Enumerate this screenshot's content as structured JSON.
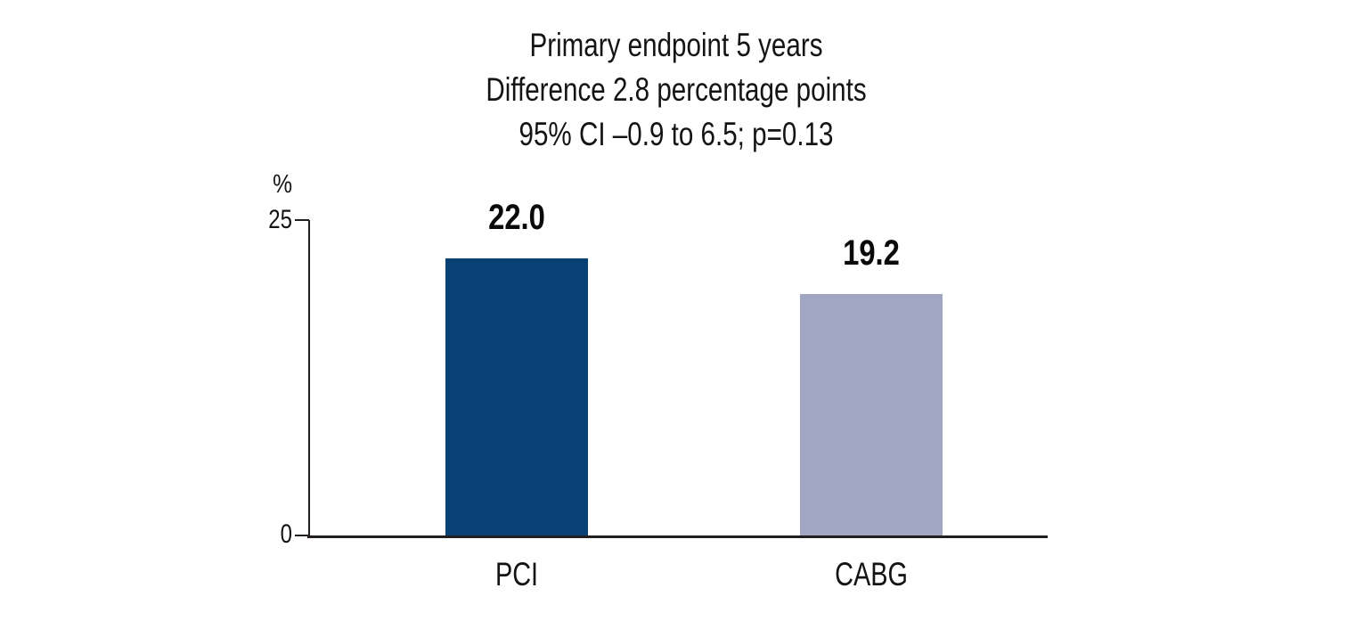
{
  "title": {
    "line1": "Primary endpoint 5 years",
    "line2": "Difference 2.8 percentage points",
    "line3": "95% CI –0.9 to 6.5; p=0.13"
  },
  "y_axis": {
    "unit_label": "%",
    "tick_top": "25",
    "tick_bottom": "0"
  },
  "chart_data": {
    "type": "bar",
    "title": "Primary endpoint 5 years",
    "subtitle_lines": [
      "Difference 2.8 percentage points",
      "95% CI –0.9 to 6.5; p=0.13"
    ],
    "categories": [
      "PCI",
      "CABG"
    ],
    "values": [
      22.0,
      19.2
    ],
    "value_labels": [
      "22.0",
      "19.2"
    ],
    "bar_colors": [
      "#084275",
      "#a1a6c2"
    ],
    "xlabel": "",
    "ylabel": "%",
    "ylim": [
      0,
      25
    ],
    "yticks": [
      0,
      25
    ],
    "grid": false,
    "legend": "none",
    "annotations": {
      "difference_pp": 2.8,
      "ci_low": -0.9,
      "ci_high": 6.5,
      "p_value": 0.13
    }
  },
  "colors": {
    "background": "#ffffff",
    "axis": "#231f20",
    "text": "#141414",
    "bar_pci": "#084275",
    "bar_cabg": "#a1a6c2"
  }
}
